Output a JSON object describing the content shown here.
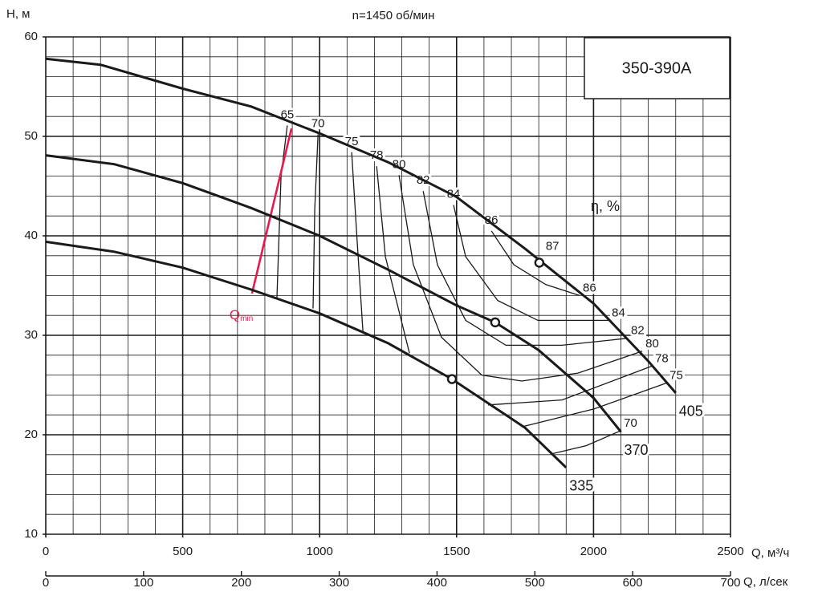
{
  "chart_data": {
    "type": "line",
    "title": "n=1450 об/мин",
    "model": "350-390A",
    "ylabel": "H, м",
    "xlabel": "Q, м³/ч",
    "x2label": "Q, л/сек",
    "eta_label": "η, %",
    "eta_max_label": "87",
    "xlim": [
      0,
      2500
    ],
    "xticks": [
      0,
      500,
      1000,
      1500,
      2000,
      2500
    ],
    "xminorticks": [
      100,
      200,
      300,
      400,
      600,
      700,
      800,
      900,
      1100,
      1200,
      1300,
      1400,
      1600,
      1700,
      1800,
      1900,
      2100,
      2200,
      2300,
      2400
    ],
    "x2lim": [
      0,
      700
    ],
    "x2ticks": [
      0,
      100,
      200,
      300,
      400,
      500,
      600,
      700
    ],
    "ylim": [
      10,
      60
    ],
    "yticks": [
      10,
      20,
      30,
      40,
      50,
      60
    ],
    "yminorticks": [
      12,
      14,
      16,
      18,
      22,
      24,
      26,
      28,
      32,
      34,
      36,
      38,
      42,
      44,
      46,
      48,
      52,
      54,
      56,
      58
    ],
    "grid": true,
    "series": [
      {
        "name": "405",
        "color": "#1a1a1a",
        "x": [
          0,
          200,
          500,
          750,
          1000,
          1250,
          1500,
          1750,
          2000,
          2200,
          2300
        ],
        "values": [
          57.8,
          57.2,
          54.8,
          53.0,
          50.3,
          47.4,
          43.9,
          38.7,
          33.2,
          27.4,
          24.2
        ],
        "bep_x": 1802,
        "bep_y": 37.3
      },
      {
        "name": "370",
        "color": "#1a1a1a",
        "x": [
          0,
          250,
          500,
          750,
          1000,
          1250,
          1500,
          1641,
          1800,
          2000,
          2100
        ],
        "values": [
          48.1,
          47.2,
          45.3,
          42.8,
          40.0,
          36.6,
          33.0,
          31.3,
          28.5,
          23.7,
          20.3
        ],
        "bep_x": 1641,
        "bep_y": 31.3
      },
      {
        "name": "335",
        "color": "#1a1a1a",
        "x": [
          0,
          250,
          500,
          750,
          1000,
          1250,
          1483,
          1750,
          1900
        ],
        "values": [
          39.4,
          38.4,
          36.8,
          34.6,
          32.2,
          29.2,
          25.6,
          20.7,
          16.7
        ],
        "bep_x": 1483,
        "bep_y": 25.6
      }
    ],
    "efficiency": [
      {
        "name": "65",
        "x": [
          882,
          859,
          844
        ],
        "values": [
          51.1,
          46.0,
          33.8
        ]
      },
      {
        "name": "70",
        "x": [
          994,
          982,
          976,
          null,
          1849,
          1973,
          2099
        ],
        "values": [
          50.2,
          42.7,
          32.7,
          null,
          18.1,
          18.9,
          20.4
        ]
      },
      {
        "name": "75",
        "x": [
          1117,
          1137,
          1158,
          null,
          1738,
          2002,
          2266
        ],
        "values": [
          48.4,
          39.5,
          30.4,
          null,
          20.8,
          22.6,
          25.2
        ]
      },
      {
        "name": "78",
        "x": [
          1208,
          1240,
          1328,
          null,
          1615,
          1885,
          2213
        ],
        "values": [
          47.0,
          37.9,
          28.2,
          null,
          23.0,
          23.5,
          26.9
        ]
      },
      {
        "name": "80",
        "x": [
          1290,
          1342,
          1445,
          1592,
          1738,
          1943,
          2178
        ],
        "values": [
          46.1,
          37.1,
          29.8,
          26.0,
          25.4,
          26.2,
          28.4
        ]
      },
      {
        "name": "82",
        "x": [
          1378,
          1430,
          1533,
          1680,
          1885,
          2125
        ],
        "values": [
          44.5,
          37.1,
          31.5,
          29.0,
          29.0,
          29.7
        ]
      },
      {
        "name": "84",
        "x": [
          1489,
          1533,
          1650,
          1797,
          2055
        ],
        "values": [
          43.1,
          37.9,
          33.5,
          31.5,
          31.5
        ]
      },
      {
        "name": "86",
        "x": [
          1627,
          1709,
          1826,
          1949
        ],
        "values": [
          40.5,
          37.1,
          35.1,
          34.0
        ]
      }
    ],
    "qmin": {
      "label": "Q",
      "label_sub": "min",
      "color": "#e8194b",
      "x": [
        897,
        753
      ],
      "values": [
        50.8,
        34.2
      ]
    }
  }
}
